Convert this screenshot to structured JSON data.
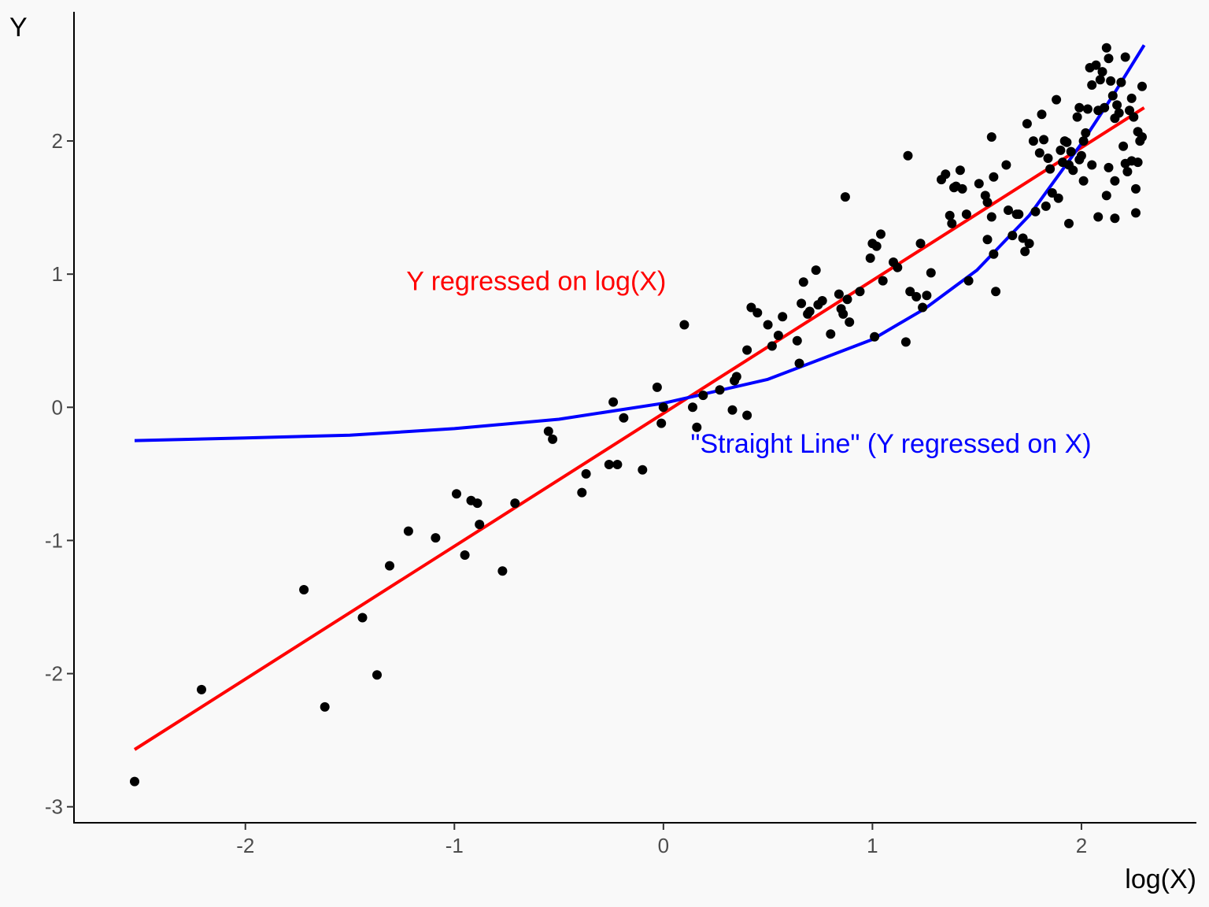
{
  "chart_data": {
    "type": "scatter",
    "xlabel": "log(X)",
    "ylabel": "Y",
    "xlim": [
      -2.82,
      2.55
    ],
    "ylim": [
      -3.12,
      2.97
    ],
    "x_ticks": [
      -2,
      -1,
      0,
      1,
      2
    ],
    "x_tick_labels": [
      "-2",
      "-1",
      "0",
      "1",
      "2"
    ],
    "y_ticks": [
      -3,
      -2,
      -1,
      0,
      1,
      2
    ],
    "y_tick_labels": [
      "-3",
      "-2",
      "-1",
      "0",
      "1",
      "2"
    ],
    "grid": false,
    "point_color": "#000000",
    "points": [
      [
        -2.53,
        -2.81
      ],
      [
        -2.21,
        -2.12
      ],
      [
        -1.72,
        -1.37
      ],
      [
        -1.62,
        -2.25
      ],
      [
        -1.44,
        -1.58
      ],
      [
        -1.37,
        -2.01
      ],
      [
        -1.31,
        -1.19
      ],
      [
        -1.22,
        -0.93
      ],
      [
        -1.09,
        -0.98
      ],
      [
        -0.99,
        -0.65
      ],
      [
        -0.95,
        -1.11
      ],
      [
        -0.92,
        -0.7
      ],
      [
        -0.89,
        -0.72
      ],
      [
        -0.88,
        -0.88
      ],
      [
        -0.77,
        -1.23
      ],
      [
        -0.71,
        -0.72
      ],
      [
        -0.55,
        -0.18
      ],
      [
        -0.53,
        -0.24
      ],
      [
        -0.39,
        -0.64
      ],
      [
        -0.37,
        -0.5
      ],
      [
        -0.26,
        -0.43
      ],
      [
        -0.24,
        0.04
      ],
      [
        -0.22,
        -0.43
      ],
      [
        -0.19,
        -0.08
      ],
      [
        -0.1,
        -0.47
      ],
      [
        -0.03,
        0.15
      ],
      [
        -0.01,
        -0.12
      ],
      [
        0.0,
        0.0
      ],
      [
        0.1,
        0.62
      ],
      [
        0.14,
        0.0
      ],
      [
        0.16,
        -0.15
      ],
      [
        0.19,
        0.09
      ],
      [
        0.27,
        0.13
      ],
      [
        0.33,
        -0.02
      ],
      [
        0.34,
        0.2
      ],
      [
        0.35,
        0.23
      ],
      [
        0.4,
        -0.06
      ],
      [
        0.4,
        0.43
      ],
      [
        0.42,
        0.75
      ],
      [
        0.45,
        0.71
      ],
      [
        0.5,
        0.62
      ],
      [
        0.52,
        0.46
      ],
      [
        0.55,
        0.54
      ],
      [
        0.57,
        0.68
      ],
      [
        0.64,
        0.5
      ],
      [
        0.65,
        0.33
      ],
      [
        0.66,
        0.78
      ],
      [
        0.67,
        0.94
      ],
      [
        0.69,
        0.7
      ],
      [
        0.7,
        0.72
      ],
      [
        0.73,
        1.03
      ],
      [
        0.74,
        0.77
      ],
      [
        0.76,
        0.8
      ],
      [
        0.8,
        0.55
      ],
      [
        0.84,
        0.85
      ],
      [
        0.85,
        0.74
      ],
      [
        0.86,
        0.7
      ],
      [
        0.87,
        1.58
      ],
      [
        0.88,
        0.81
      ],
      [
        0.89,
        0.64
      ],
      [
        0.94,
        0.87
      ],
      [
        0.99,
        1.12
      ],
      [
        1.0,
        1.23
      ],
      [
        1.01,
        0.53
      ],
      [
        1.02,
        1.21
      ],
      [
        1.04,
        1.3
      ],
      [
        1.05,
        0.95
      ],
      [
        1.1,
        1.09
      ],
      [
        1.12,
        1.05
      ],
      [
        1.16,
        0.49
      ],
      [
        1.17,
        1.89
      ],
      [
        1.18,
        0.87
      ],
      [
        1.21,
        0.83
      ],
      [
        1.23,
        1.23
      ],
      [
        1.24,
        0.75
      ],
      [
        1.26,
        0.84
      ],
      [
        1.28,
        1.01
      ],
      [
        1.33,
        1.71
      ],
      [
        1.35,
        1.75
      ],
      [
        1.37,
        1.44
      ],
      [
        1.38,
        1.38
      ],
      [
        1.39,
        1.65
      ],
      [
        1.4,
        1.66
      ],
      [
        1.42,
        1.78
      ],
      [
        1.43,
        1.64
      ],
      [
        1.45,
        1.45
      ],
      [
        1.46,
        0.95
      ],
      [
        1.51,
        1.68
      ],
      [
        1.54,
        1.59
      ],
      [
        1.55,
        1.54
      ],
      [
        1.55,
        1.26
      ],
      [
        1.57,
        1.43
      ],
      [
        1.57,
        2.03
      ],
      [
        1.58,
        1.73
      ],
      [
        1.58,
        1.15
      ],
      [
        1.59,
        0.87
      ],
      [
        1.64,
        1.82
      ],
      [
        1.65,
        1.48
      ],
      [
        1.67,
        1.29
      ],
      [
        1.69,
        1.45
      ],
      [
        1.7,
        1.45
      ],
      [
        1.72,
        1.27
      ],
      [
        1.73,
        1.17
      ],
      [
        1.74,
        2.13
      ],
      [
        1.75,
        1.23
      ],
      [
        1.77,
        2.0
      ],
      [
        1.78,
        1.47
      ],
      [
        1.8,
        1.91
      ],
      [
        1.81,
        2.2
      ],
      [
        1.82,
        2.01
      ],
      [
        1.83,
        1.51
      ],
      [
        1.84,
        1.87
      ],
      [
        1.85,
        1.79
      ],
      [
        1.86,
        1.61
      ],
      [
        1.88,
        2.31
      ],
      [
        1.89,
        1.57
      ],
      [
        1.9,
        1.93
      ],
      [
        1.91,
        1.84
      ],
      [
        1.92,
        2.0
      ],
      [
        1.93,
        1.99
      ],
      [
        1.94,
        1.82
      ],
      [
        1.95,
        1.92
      ],
      [
        1.96,
        1.78
      ],
      [
        1.98,
        2.18
      ],
      [
        1.99,
        2.25
      ],
      [
        1.99,
        1.86
      ],
      [
        2.0,
        1.89
      ],
      [
        2.01,
        2.0
      ],
      [
        2.02,
        2.06
      ],
      [
        2.03,
        2.24
      ],
      [
        2.04,
        2.55
      ],
      [
        2.05,
        2.42
      ],
      [
        2.07,
        2.57
      ],
      [
        2.08,
        2.23
      ],
      [
        2.09,
        2.46
      ],
      [
        2.1,
        2.52
      ],
      [
        2.11,
        2.25
      ],
      [
        2.12,
        2.7
      ],
      [
        2.13,
        2.62
      ],
      [
        2.14,
        2.45
      ],
      [
        2.15,
        2.34
      ],
      [
        2.16,
        2.17
      ],
      [
        2.16,
        1.7
      ],
      [
        2.17,
        2.27
      ],
      [
        2.18,
        2.21
      ],
      [
        2.19,
        2.44
      ],
      [
        2.2,
        1.96
      ],
      [
        2.21,
        2.63
      ],
      [
        2.22,
        1.77
      ],
      [
        2.23,
        2.23
      ],
      [
        2.24,
        2.32
      ],
      [
        2.25,
        2.18
      ],
      [
        2.26,
        1.64
      ],
      [
        2.27,
        2.07
      ],
      [
        2.28,
        2.0
      ],
      [
        2.29,
        2.41
      ],
      [
        1.94,
        1.38
      ],
      [
        2.01,
        1.7
      ],
      [
        2.08,
        1.43
      ],
      [
        2.12,
        1.59
      ],
      [
        2.16,
        1.42
      ],
      [
        2.26,
        1.46
      ],
      [
        2.05,
        1.82
      ],
      [
        2.13,
        1.8
      ],
      [
        2.21,
        1.83
      ],
      [
        2.24,
        1.85
      ],
      [
        2.27,
        1.84
      ],
      [
        2.29,
        2.03
      ]
    ],
    "series": [
      {
        "name": "Y regressed on log(X)",
        "color": "#ff0000",
        "type": "line",
        "x": [
          -2.53,
          2.3
        ],
        "y": [
          -2.57,
          2.25
        ]
      },
      {
        "name": "\"Straight Line\" (Y regressed on X)",
        "color": "#0000ff",
        "type": "line",
        "x": [
          -2.53,
          -2.0,
          -1.5,
          -1.0,
          -0.5,
          0.0,
          0.5,
          1.0,
          1.25,
          1.5,
          1.75,
          2.0,
          2.15,
          2.3
        ],
        "y": [
          -0.25,
          -0.23,
          -0.21,
          -0.16,
          -0.09,
          0.03,
          0.21,
          0.51,
          0.74,
          1.03,
          1.44,
          1.98,
          2.34,
          2.72
        ]
      }
    ],
    "annotations": [
      {
        "text": "Y regressed on log(X)",
        "x": -1.23,
        "y": 0.95,
        "color": "#ff0000",
        "anchor": "start"
      },
      {
        "text": "\"Straight Line\" (Y regressed on X)",
        "x": 0.13,
        "y": -0.27,
        "color": "#0000ff",
        "anchor": "start"
      }
    ]
  }
}
